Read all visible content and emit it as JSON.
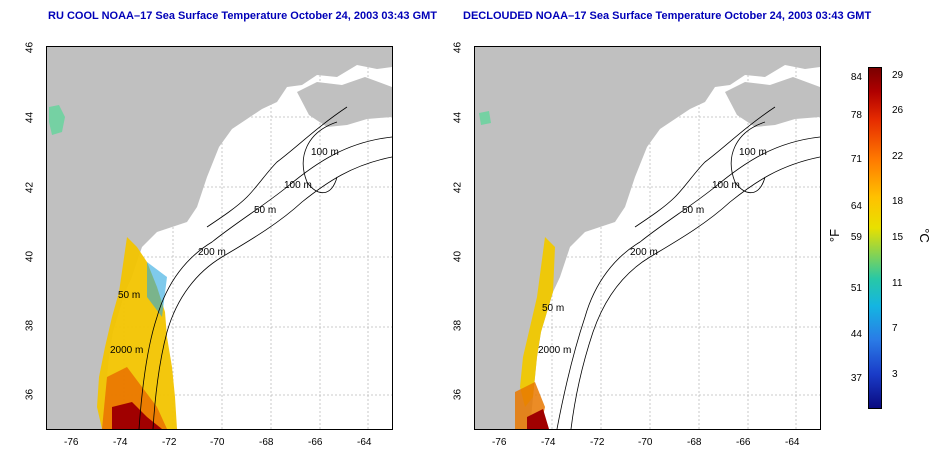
{
  "left_panel": {
    "title": "RU COOL NOAA–17 Sea Surface Temperature October 24, 2003 03:43 GMT"
  },
  "right_panel": {
    "title": "DECLOUDED NOAA–17 Sea Surface Temperature October 24, 2003 03:43 GMT"
  },
  "axes": {
    "x_ticks": [
      "-76",
      "-74",
      "-72",
      "-70",
      "-68",
      "-66",
      "-64"
    ],
    "y_ticks": [
      "46",
      "44",
      "42",
      "40",
      "38",
      "36"
    ]
  },
  "contour_labels": {
    "left": [
      "100 m",
      "100 m",
      "50 m",
      "200 m",
      "50 m",
      "2000 m"
    ],
    "right": [
      "100 m",
      "100 m",
      "50 m",
      "200 m",
      "50 m",
      "2000 m"
    ]
  },
  "colorbar": {
    "fahrenheit_label": "°F",
    "celsius_label": "°C",
    "fahrenheit_ticks": [
      "84",
      "78",
      "71",
      "64",
      "59",
      "51",
      "44",
      "37"
    ],
    "celsius_ticks": [
      "29",
      "26",
      "22",
      "18",
      "15",
      "11",
      "7",
      "3"
    ]
  },
  "colors": {
    "title": "#0000b8",
    "land": "#c0c0c0"
  }
}
